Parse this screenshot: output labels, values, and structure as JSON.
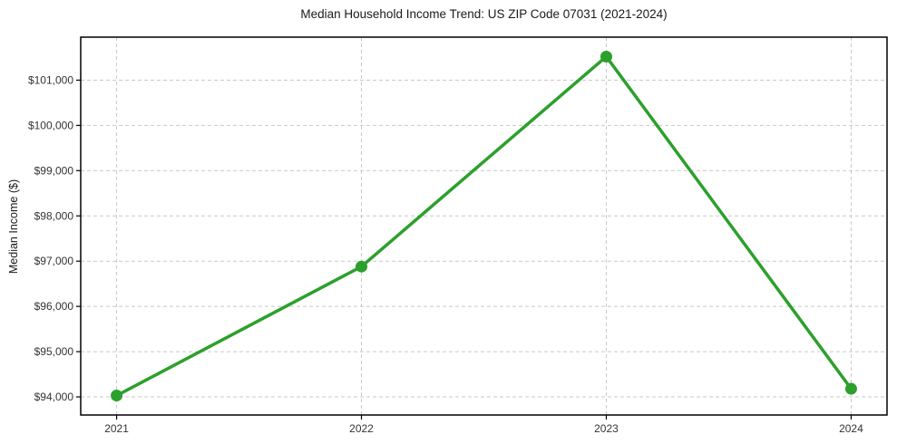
{
  "chart_data": {
    "type": "line",
    "title": "Median Household Income Trend: US ZIP Code 07031 (2021-2024)",
    "xlabel": "",
    "ylabel": "Median Income ($)",
    "categories": [
      "2021",
      "2022",
      "2023",
      "2024"
    ],
    "series": [
      {
        "name": "Median Household Income",
        "values": [
          94030,
          96880,
          101520,
          94180
        ]
      }
    ],
    "ytick_values": [
      94000,
      95000,
      96000,
      97000,
      98000,
      99000,
      100000,
      101000
    ],
    "ytick_labels": [
      "$94,000",
      "$95,000",
      "$96,000",
      "$97,000",
      "$98,000",
      "$99,000",
      "$100,000",
      "$101,000"
    ],
    "ylim": [
      93600,
      101950
    ],
    "grid": true,
    "legend_position": "none",
    "line_color": "#2ca02c",
    "marker_color": "#2ca02c",
    "grid_color": "#c9c9c9",
    "axis_color": "#000000",
    "tick_label_color": "#333333",
    "background_color": "#ffffff"
  }
}
